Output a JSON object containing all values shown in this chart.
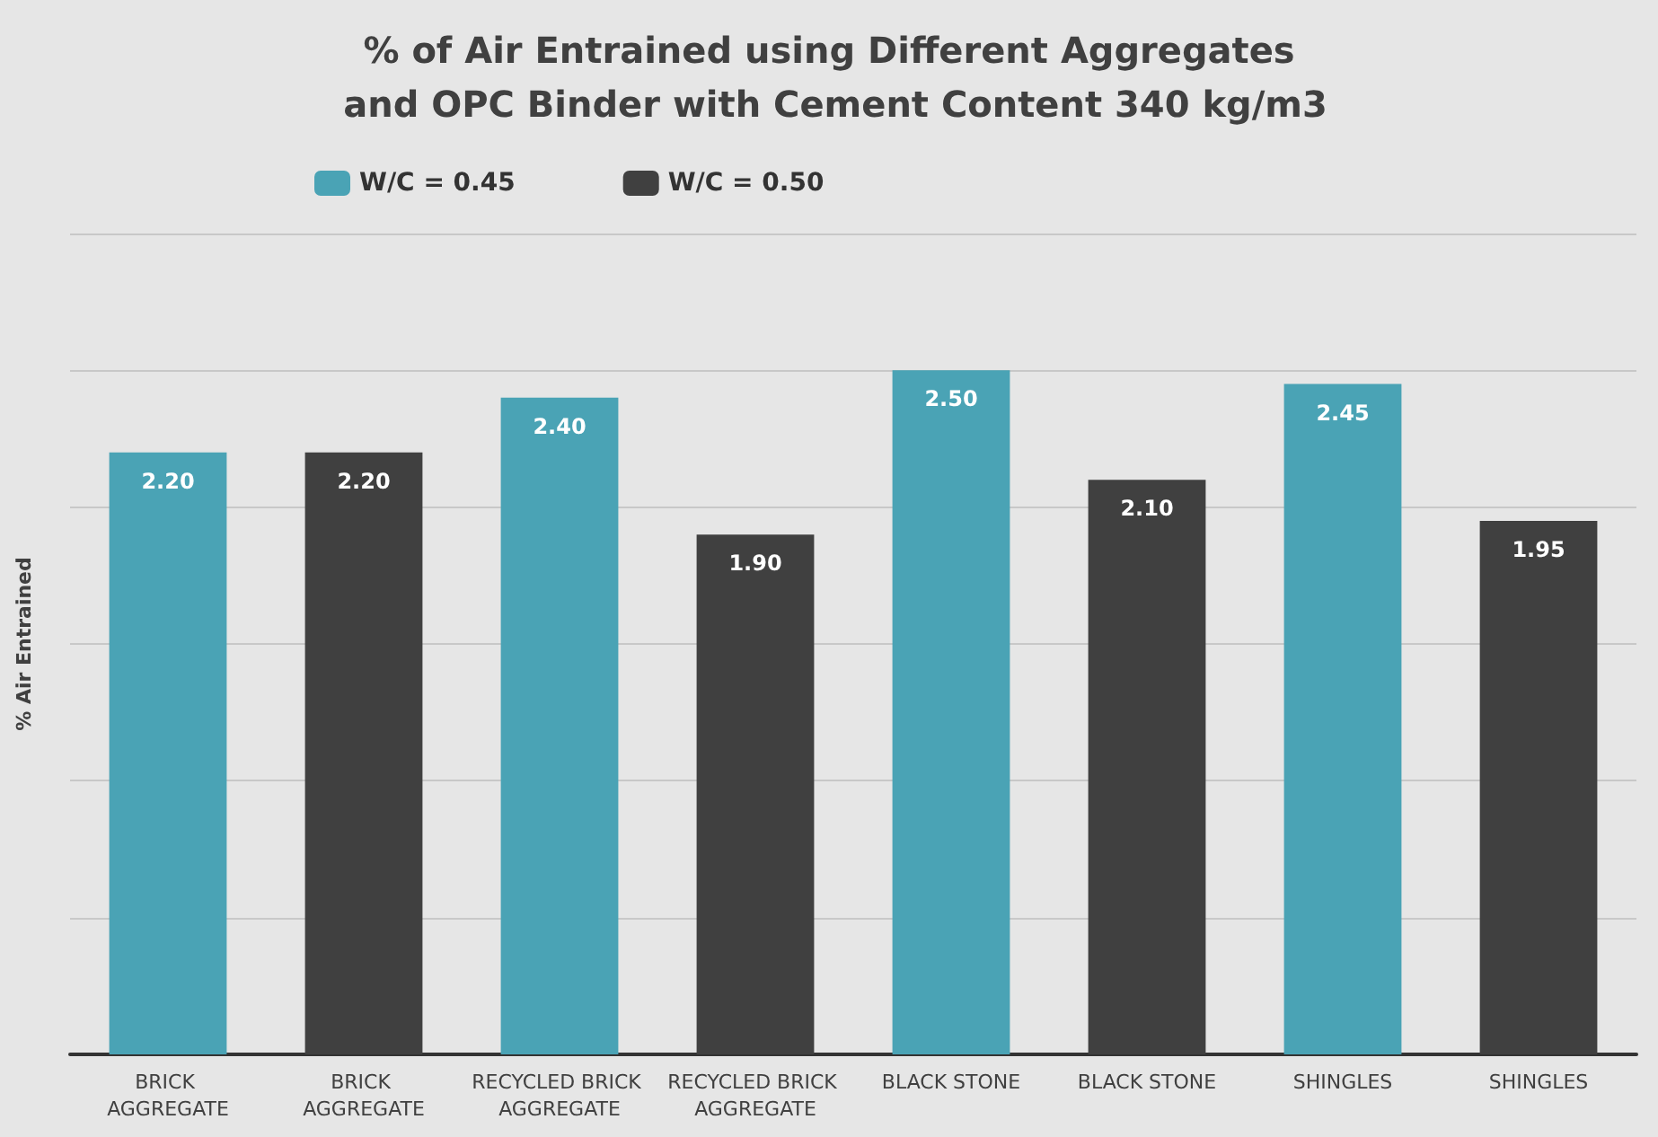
{
  "chart_data": {
    "type": "bar",
    "title": "% of Air Entrained using Different Aggregates and OPC Binder with Cement Content 340 kg/m3",
    "ylabel": "% Air Entrained",
    "categories": [
      "BRICK AGGREGATE",
      "BRICK AGGREGATE",
      "RECYCLED BRICK AGGREGATE",
      "RECYCLED BRICK AGGREGATE",
      "BLACK STONE",
      "BLACK STONE",
      "SHINGLES",
      "SHINGLES"
    ],
    "stacked": true,
    "series": [
      {
        "name": "W/C = 0.45",
        "color": "#4aa3b5",
        "values": [
          2.2,
          null,
          2.4,
          null,
          2.5,
          null,
          2.45,
          null
        ],
        "value_labels": [
          "2.20",
          null,
          "2.40",
          null,
          "2.50",
          null,
          "2.45",
          null
        ]
      },
      {
        "name": "W/C = 0.50",
        "color": "#404040",
        "values": [
          null,
          2.2,
          null,
          1.9,
          null,
          2.1,
          null,
          1.95
        ],
        "value_labels": [
          null,
          "2.20",
          null,
          "1.90",
          null,
          "2.10",
          null,
          "1.95"
        ]
      }
    ],
    "ylim": [
      0,
      3
    ],
    "yticks": [
      {
        "value": 0,
        "label": null
      },
      {
        "value": 0.5,
        "label": null
      },
      {
        "value": 1,
        "label": null
      },
      {
        "value": 1.5,
        "label": null
      },
      {
        "value": 2,
        "label": null
      },
      {
        "value": 2.5,
        "label": null
      },
      {
        "value": 3,
        "label": null
      }
    ],
    "tick_labels": "x",
    "grid": "y",
    "legend": "top left"
  }
}
